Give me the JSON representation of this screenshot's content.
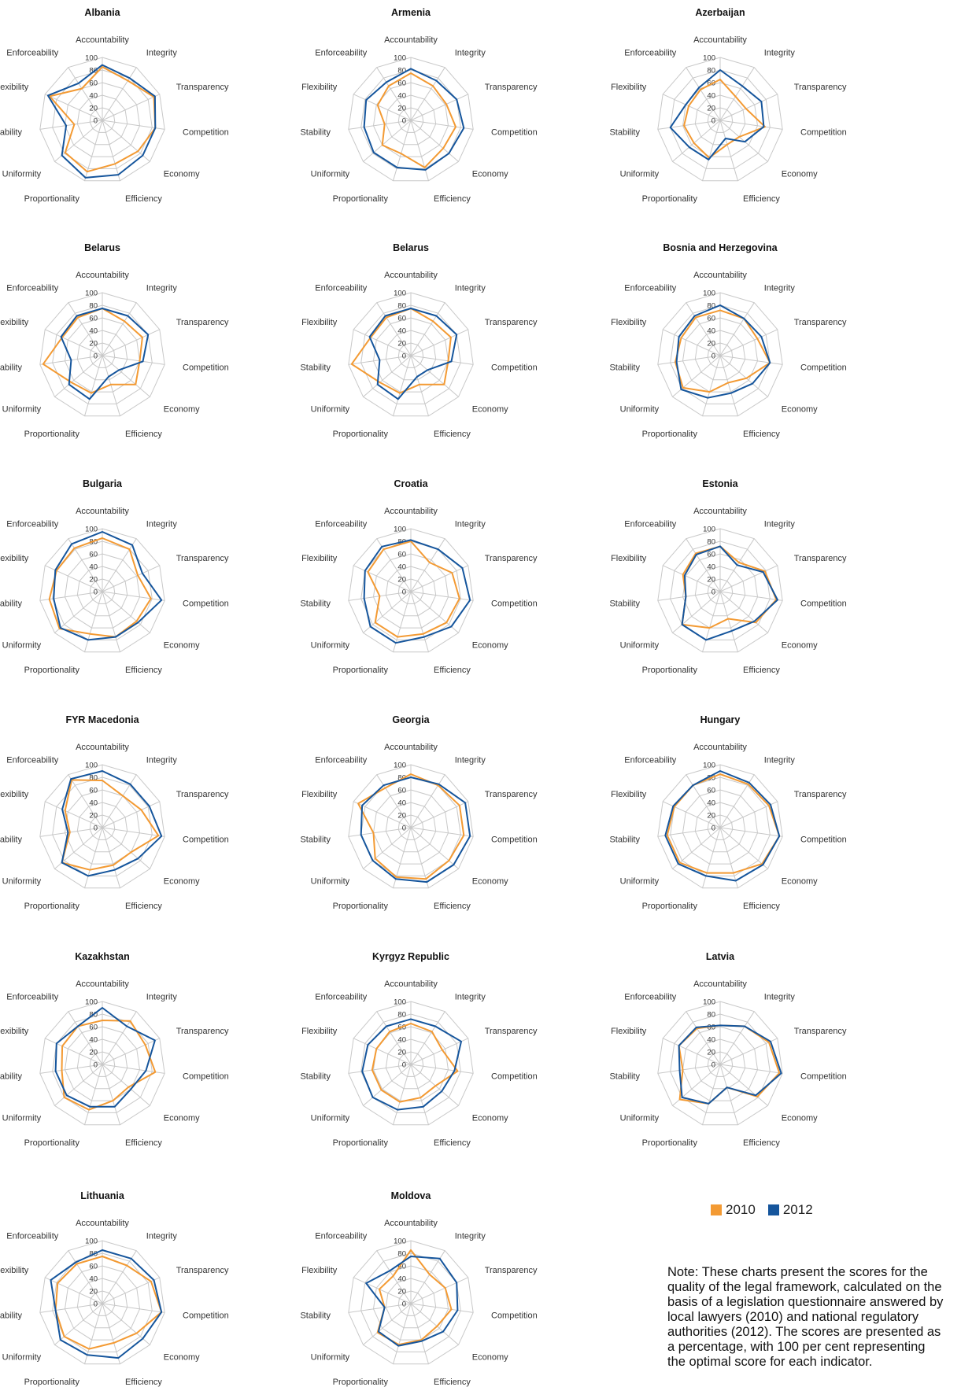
{
  "colors": {
    "y2010": "#f39a33",
    "y2012": "#15559c",
    "grid": "#c8c8c8",
    "text": "#333333"
  },
  "legend": {
    "label_2010": "2010",
    "label_2012": "2012"
  },
  "note": "Note: These charts present the scores for the\nquality of the legal framework, calculated on the\nbasis of a legislation questionnaire answered by\nlocal lawyers (2010) and national regulatory\nauthorities (2012). The scores are presented as\na percentage, with 100 per cent representing\nthe optimal score for each indicator.",
  "chart_data": [
    {
      "type": "radar",
      "title": "Albania",
      "axes": [
        "Accountability",
        "Integrity",
        "Transparency",
        "Competition",
        "Economy",
        "Efficiency",
        "Proportionality",
        "Uniformity",
        "Stability",
        "Flexibility",
        "Enforceability"
      ],
      "rticks": [
        "100",
        "80",
        "60",
        "40",
        "20",
        "0"
      ],
      "rlim": [
        0,
        100
      ],
      "series": [
        {
          "name": "2010",
          "values": [
            85,
            75,
            90,
            85,
            75,
            72,
            85,
            78,
            45,
            92,
            60
          ]
        },
        {
          "name": "2012",
          "values": [
            88,
            80,
            92,
            85,
            85,
            90,
            95,
            85,
            58,
            95,
            70
          ]
        }
      ]
    },
    {
      "type": "radar",
      "title": "Armenia",
      "axes": [
        "Accountability",
        "Integrity",
        "Transparency",
        "Competition",
        "Economy",
        "Efficiency",
        "Proportionality",
        "Uniformity",
        "Stability",
        "Flexibility",
        "Enforceability"
      ],
      "rticks": [
        "100",
        "80",
        "60",
        "40",
        "20",
        "0"
      ],
      "rlim": [
        0,
        100
      ],
      "series": [
        {
          "name": "2010",
          "values": [
            75,
            65,
            62,
            72,
            68,
            78,
            55,
            60,
            42,
            58,
            65
          ]
        },
        {
          "name": "2012",
          "values": [
            82,
            75,
            80,
            85,
            80,
            82,
            78,
            78,
            75,
            78,
            72
          ]
        }
      ]
    },
    {
      "type": "radar",
      "title": "Azerbaijan",
      "axes": [
        "Accountability",
        "Integrity",
        "Transparency",
        "Competition",
        "Economy",
        "Efficiency",
        "Proportionality",
        "Uniformity",
        "Stability",
        "Flexibility",
        "Enforceability"
      ],
      "rticks": [
        "100",
        "80",
        "60",
        "40",
        "20",
        "0"
      ],
      "rlim": [
        0,
        100
      ],
      "series": [
        {
          "name": "2010",
          "values": [
            65,
            45,
            45,
            72,
            40,
            40,
            62,
            55,
            58,
            55,
            58
          ]
        },
        {
          "name": "2012",
          "values": [
            80,
            65,
            72,
            70,
            52,
            30,
            65,
            65,
            80,
            60,
            62
          ]
        }
      ]
    },
    {
      "type": "radar",
      "title": "Belarus",
      "axes": [
        "Accountability",
        "Integrity",
        "Transparency",
        "Competition",
        "Economy",
        "Efficiency",
        "Proportionality",
        "Uniformity",
        "Stability",
        "Flexibility",
        "Enforceability"
      ],
      "rticks": [
        "100",
        "80",
        "60",
        "40",
        "20",
        "0"
      ],
      "rlim": [
        0,
        100
      ],
      "series": [
        {
          "name": "2010",
          "values": [
            75,
            65,
            70,
            60,
            70,
            48,
            62,
            65,
            95,
            70,
            72
          ]
        },
        {
          "name": "2012",
          "values": [
            75,
            75,
            80,
            65,
            35,
            35,
            72,
            70,
            50,
            72,
            75
          ]
        }
      ]
    },
    {
      "type": "radar",
      "title": "Belarus",
      "axes": [
        "Accountability",
        "Integrity",
        "Transparency",
        "Competition",
        "Economy",
        "Efficiency",
        "Proportionality",
        "Uniformity",
        "Stability",
        "Flexibility",
        "Enforceability"
      ],
      "rticks": [
        "100",
        "80",
        "60",
        "40",
        "20",
        "0"
      ],
      "rlim": [
        0,
        100
      ],
      "series": [
        {
          "name": "2010",
          "values": [
            75,
            65,
            70,
            60,
            70,
            48,
            62,
            65,
            95,
            70,
            72
          ]
        },
        {
          "name": "2012",
          "values": [
            75,
            75,
            80,
            65,
            35,
            35,
            72,
            70,
            50,
            72,
            75
          ]
        }
      ]
    },
    {
      "type": "radar",
      "title": "Bosnia and Herzegovina",
      "axes": [
        "Accountability",
        "Integrity",
        "Transparency",
        "Competition",
        "Economy",
        "Efficiency",
        "Proportionality",
        "Uniformity",
        "Stability",
        "Flexibility",
        "Enforceability"
      ],
      "rticks": [
        "100",
        "80",
        "60",
        "40",
        "20",
        "0"
      ],
      "rlim": [
        0,
        100
      ],
      "series": [
        {
          "name": "2010",
          "values": [
            72,
            70,
            65,
            80,
            55,
            45,
            60,
            78,
            72,
            68,
            72
          ]
        },
        {
          "name": "2012",
          "values": [
            80,
            70,
            72,
            80,
            68,
            62,
            70,
            82,
            70,
            72,
            75
          ]
        }
      ]
    },
    {
      "type": "radar",
      "title": "Bulgaria",
      "axes": [
        "Accountability",
        "Integrity",
        "Transparency",
        "Competition",
        "Economy",
        "Efficiency",
        "Proportionality",
        "Uniformity",
        "Stability",
        "Flexibility",
        "Enforceability"
      ],
      "rticks": [
        "100",
        "80",
        "60",
        "40",
        "20",
        "0"
      ],
      "rlim": [
        0,
        100
      ],
      "series": [
        {
          "name": "2010",
          "values": [
            85,
            80,
            62,
            78,
            72,
            75,
            70,
            90,
            85,
            80,
            82
          ]
        },
        {
          "name": "2012",
          "values": [
            95,
            88,
            70,
            95,
            75,
            75,
            80,
            88,
            78,
            82,
            90
          ]
        }
      ]
    },
    {
      "type": "radar",
      "title": "Croatia",
      "axes": [
        "Accountability",
        "Integrity",
        "Transparency",
        "Competition",
        "Economy",
        "Efficiency",
        "Proportionality",
        "Uniformity",
        "Stability",
        "Flexibility",
        "Enforceability"
      ],
      "rticks": [
        "100",
        "80",
        "60",
        "40",
        "20",
        "0"
      ],
      "rlim": [
        0,
        100
      ],
      "series": [
        {
          "name": "2010",
          "values": [
            80,
            55,
            72,
            78,
            75,
            70,
            75,
            75,
            50,
            75,
            80
          ]
        },
        {
          "name": "2012",
          "values": [
            82,
            80,
            90,
            95,
            85,
            75,
            85,
            85,
            75,
            80,
            85
          ]
        }
      ]
    },
    {
      "type": "radar",
      "title": "Estonia",
      "axes": [
        "Accountability",
        "Integrity",
        "Transparency",
        "Competition",
        "Economy",
        "Efficiency",
        "Proportionality",
        "Uniformity",
        "Stability",
        "Flexibility",
        "Enforceability"
      ],
      "rticks": [
        "100",
        "80",
        "60",
        "40",
        "20",
        "0"
      ],
      "rlim": [
        0,
        100
      ],
      "series": [
        {
          "name": "2010",
          "values": [
            72,
            55,
            78,
            90,
            75,
            45,
            60,
            80,
            55,
            65,
            72
          ]
        },
        {
          "name": "2012",
          "values": [
            72,
            50,
            75,
            92,
            72,
            65,
            80,
            80,
            55,
            62,
            70
          ]
        }
      ]
    },
    {
      "type": "radar",
      "title": "FYR Macedonia",
      "axes": [
        "Accountability",
        "Integrity",
        "Transparency",
        "Competition",
        "Economy",
        "Efficiency",
        "Proportionality",
        "Uniformity",
        "Stability",
        "Flexibility",
        "Enforceability"
      ],
      "rticks": [
        "100",
        "80",
        "60",
        "40",
        "20",
        "0"
      ],
      "rlim": [
        0,
        100
      ],
      "series": [
        {
          "name": "2010",
          "values": [
            75,
            60,
            68,
            90,
            60,
            62,
            70,
            85,
            52,
            65,
            90
          ]
        },
        {
          "name": "2012",
          "values": [
            90,
            82,
            82,
            95,
            75,
            70,
            80,
            85,
            55,
            70,
            92
          ]
        }
      ]
    },
    {
      "type": "radar",
      "title": "Georgia",
      "axes": [
        "Accountability",
        "Integrity",
        "Transparency",
        "Competition",
        "Economy",
        "Efficiency",
        "Proportionality",
        "Uniformity",
        "Stability",
        "Flexibility",
        "Enforceability"
      ],
      "rticks": [
        "100",
        "80",
        "60",
        "40",
        "20",
        "0"
      ],
      "rlim": [
        0,
        100
      ],
      "series": [
        {
          "name": "2010",
          "values": [
            85,
            80,
            85,
            85,
            80,
            85,
            82,
            75,
            60,
            92,
            75
          ]
        },
        {
          "name": "2012",
          "values": [
            80,
            82,
            95,
            95,
            90,
            90,
            85,
            80,
            80,
            85,
            80
          ]
        }
      ]
    },
    {
      "type": "radar",
      "title": "Hungary",
      "axes": [
        "Accountability",
        "Integrity",
        "Transparency",
        "Competition",
        "Economy",
        "Efficiency",
        "Proportionality",
        "Uniformity",
        "Stability",
        "Flexibility",
        "Enforceability"
      ],
      "rticks": [
        "100",
        "80",
        "60",
        "40",
        "20",
        "0"
      ],
      "rlim": [
        0,
        100
      ],
      "series": [
        {
          "name": "2010",
          "values": [
            85,
            82,
            85,
            95,
            88,
            75,
            75,
            85,
            85,
            80,
            80
          ]
        },
        {
          "name": "2012",
          "values": [
            90,
            85,
            88,
            95,
            90,
            88,
            80,
            88,
            88,
            82,
            80
          ]
        }
      ]
    },
    {
      "type": "radar",
      "title": "Kazakhstan",
      "axes": [
        "Accountability",
        "Integrity",
        "Transparency",
        "Competition",
        "Economy",
        "Efficiency",
        "Proportionality",
        "Uniformity",
        "Stability",
        "Flexibility",
        "Enforceability"
      ],
      "rticks": [
        "100",
        "80",
        "60",
        "40",
        "20",
        "0"
      ],
      "rlim": [
        0,
        100
      ],
      "series": [
        {
          "name": "2010",
          "values": [
            70,
            82,
            75,
            85,
            55,
            60,
            75,
            80,
            65,
            70,
            72
          ]
        },
        {
          "name": "2012",
          "values": [
            90,
            72,
            92,
            70,
            60,
            70,
            70,
            75,
            75,
            80,
            72
          ]
        }
      ]
    },
    {
      "type": "radar",
      "title": "Kyrgyz Republic",
      "axes": [
        "Accountability",
        "Integrity",
        "Transparency",
        "Competition",
        "Economy",
        "Efficiency",
        "Proportionality",
        "Uniformity",
        "Stability",
        "Flexibility",
        "Enforceability"
      ],
      "rticks": [
        "100",
        "80",
        "60",
        "40",
        "20",
        "0"
      ],
      "rlim": [
        0,
        100
      ],
      "series": [
        {
          "name": "2010",
          "values": [
            65,
            62,
            55,
            75,
            52,
            55,
            62,
            62,
            62,
            60,
            62
          ]
        },
        {
          "name": "2012",
          "values": [
            72,
            72,
            88,
            70,
            65,
            70,
            75,
            80,
            78,
            75,
            72
          ]
        }
      ]
    },
    {
      "type": "radar",
      "title": "Latvia",
      "axes": [
        "Accountability",
        "Integrity",
        "Transparency",
        "Competition",
        "Economy",
        "Efficiency",
        "Proportionality",
        "Uniformity",
        "Stability",
        "Flexibility",
        "Enforceability"
      ],
      "rticks": [
        "100",
        "80",
        "60",
        "40",
        "20",
        "0"
      ],
      "rlim": [
        0,
        100
      ],
      "series": [
        {
          "name": "2010",
          "values": [
            62,
            72,
            85,
            95,
            78,
            38,
            65,
            85,
            60,
            72,
            68
          ]
        },
        {
          "name": "2012",
          "values": [
            62,
            72,
            88,
            98,
            75,
            38,
            65,
            80,
            65,
            72,
            70
          ]
        }
      ]
    },
    {
      "type": "radar",
      "title": "Lithuania",
      "axes": [
        "Accountability",
        "Integrity",
        "Transparency",
        "Competition",
        "Economy",
        "Efficiency",
        "Proportionality",
        "Uniformity",
        "Stability",
        "Flexibility",
        "Enforceability"
      ],
      "rticks": [
        "100",
        "80",
        "60",
        "40",
        "20",
        "0"
      ],
      "rlim": [
        0,
        100
      ],
      "series": [
        {
          "name": "2010",
          "values": [
            75,
            72,
            85,
            95,
            72,
            65,
            75,
            80,
            75,
            78,
            75
          ]
        },
        {
          "name": "2012",
          "values": [
            85,
            85,
            90,
            95,
            85,
            90,
            85,
            88,
            75,
            90,
            78
          ]
        }
      ]
    },
    {
      "type": "radar",
      "title": "Moldova",
      "axes": [
        "Accountability",
        "Integrity",
        "Transparency",
        "Competition",
        "Economy",
        "Efficiency",
        "Proportionality",
        "Uniformity",
        "Stability",
        "Flexibility",
        "Enforceability"
      ],
      "rticks": [
        "100",
        "80",
        "60",
        "40",
        "20",
        "0"
      ],
      "rlim": [
        0,
        100
      ],
      "series": [
        {
          "name": "2010",
          "values": [
            85,
            55,
            60,
            65,
            55,
            60,
            68,
            70,
            42,
            55,
            52
          ]
        },
        {
          "name": "2012",
          "values": [
            75,
            85,
            80,
            75,
            68,
            62,
            70,
            68,
            42,
            78,
            62
          ]
        }
      ]
    }
  ]
}
